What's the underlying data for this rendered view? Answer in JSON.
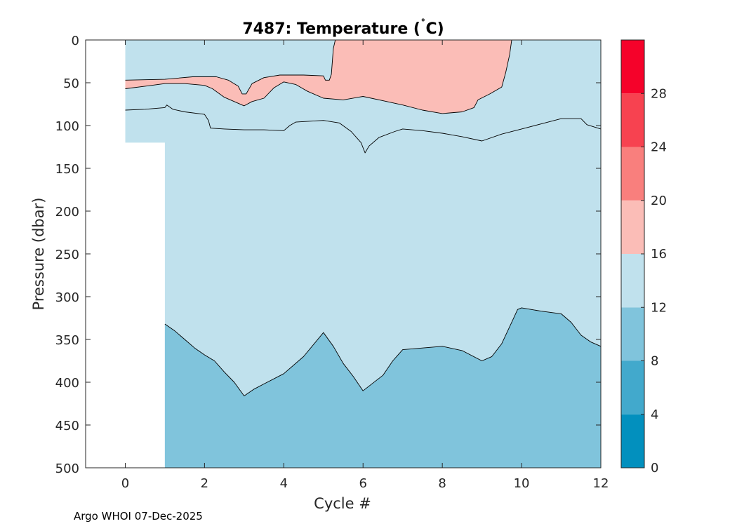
{
  "figure": {
    "title_main": "7487:  Temperature (",
    "title_degree": "˚",
    "title_unit": "C)",
    "footer": "Argo WHOI 07-Dec-2025"
  },
  "chart_data": {
    "type": "filled-contour",
    "title": "7487:  Temperature (˚C)",
    "xlabel": "Cycle #",
    "ylabel": "Pressure (dbar)",
    "xlim": [
      -1,
      12
    ],
    "ylim": [
      0,
      500
    ],
    "y_reversed": true,
    "xticks": [
      0,
      2,
      4,
      6,
      8,
      10,
      12
    ],
    "yticks": [
      0,
      50,
      100,
      150,
      200,
      250,
      300,
      350,
      400,
      450,
      500
    ],
    "colorbar": {
      "range": [
        0,
        32
      ],
      "ticks": [
        0,
        4,
        8,
        12,
        16,
        20,
        24,
        28
      ],
      "bands": [
        {
          "from": 0,
          "to": 4,
          "color": "#0290be"
        },
        {
          "from": 4,
          "to": 8,
          "color": "#42a9cc"
        },
        {
          "from": 8,
          "to": 12,
          "color": "#80c4dc"
        },
        {
          "from": 12,
          "to": 16,
          "color": "#c0e1ed"
        },
        {
          "from": 16,
          "to": 20,
          "color": "#fbbdb7"
        },
        {
          "from": 20,
          "to": 24,
          "color": "#f97f7d"
        },
        {
          "from": 24,
          "to": 28,
          "color": "#f74250"
        },
        {
          "from": 28,
          "to": 32,
          "color": "#f5022a"
        }
      ]
    },
    "data_extent": {
      "cycle0_max_pressure": 120,
      "cycles_1_to_12_max_pressure": 500
    },
    "contours": [
      {
        "level": 16,
        "name": "isotherm-16-upper",
        "points": [
          [
            0,
            47
          ],
          [
            1,
            46
          ],
          [
            1.7,
            43
          ],
          [
            2.3,
            43
          ],
          [
            2.6,
            47
          ],
          [
            2.85,
            54
          ],
          [
            2.95,
            63
          ],
          [
            3.05,
            63
          ],
          [
            3.2,
            51
          ],
          [
            3.5,
            44
          ],
          [
            3.9,
            41
          ],
          [
            4.5,
            41
          ],
          [
            5,
            42
          ],
          [
            5.05,
            47
          ],
          [
            5.15,
            47
          ],
          [
            5.2,
            40
          ],
          [
            5.25,
            10
          ],
          [
            5.3,
            0
          ]
        ]
      },
      {
        "level": 16,
        "name": "isotherm-16-lower",
        "points": [
          [
            0,
            57
          ],
          [
            0.5,
            54
          ],
          [
            1,
            51
          ],
          [
            1.5,
            51
          ],
          [
            2,
            53
          ],
          [
            2.2,
            57
          ],
          [
            2.5,
            67
          ],
          [
            2.8,
            73
          ],
          [
            3,
            77
          ],
          [
            3.2,
            72
          ],
          [
            3.5,
            68
          ],
          [
            3.75,
            56
          ],
          [
            4,
            49
          ],
          [
            4.3,
            52
          ],
          [
            4.6,
            60
          ],
          [
            5,
            68
          ],
          [
            5.5,
            70
          ],
          [
            6,
            66
          ],
          [
            6.5,
            71
          ],
          [
            7,
            76
          ],
          [
            7.5,
            82
          ],
          [
            8,
            86
          ],
          [
            8.5,
            84
          ],
          [
            8.8,
            79
          ],
          [
            8.9,
            70
          ],
          [
            9.2,
            63
          ],
          [
            9.5,
            55
          ],
          [
            9.6,
            38
          ],
          [
            9.7,
            17
          ],
          [
            9.75,
            0
          ]
        ]
      },
      {
        "level": 12,
        "name": "isotherm-12-upper",
        "points": [
          [
            0,
            82
          ],
          [
            0.5,
            81
          ],
          [
            1,
            79
          ],
          [
            1.05,
            76
          ],
          [
            1.2,
            81
          ],
          [
            1.5,
            84
          ],
          [
            2,
            87
          ],
          [
            2.1,
            94
          ],
          [
            2.15,
            103
          ],
          [
            2.5,
            104
          ],
          [
            3,
            105
          ],
          [
            3.5,
            105
          ],
          [
            4,
            106
          ],
          [
            4.15,
            100
          ],
          [
            4.3,
            96
          ],
          [
            5,
            94
          ],
          [
            5.4,
            97
          ],
          [
            5.7,
            107
          ],
          [
            5.95,
            120
          ],
          [
            6.05,
            132
          ],
          [
            6.15,
            124
          ],
          [
            6.4,
            114
          ],
          [
            6.8,
            107
          ],
          [
            7,
            104
          ],
          [
            7.5,
            106
          ],
          [
            8,
            109
          ],
          [
            8.5,
            113
          ],
          [
            9,
            118
          ],
          [
            9.5,
            110
          ],
          [
            10,
            104
          ],
          [
            10.5,
            98
          ],
          [
            11,
            92
          ],
          [
            11.5,
            92
          ],
          [
            11.65,
            99
          ],
          [
            12,
            104
          ]
        ]
      },
      {
        "level": 12,
        "name": "isotherm-12-lower",
        "points": [
          [
            1,
            332
          ],
          [
            1.25,
            340
          ],
          [
            1.5,
            350
          ],
          [
            1.75,
            360
          ],
          [
            2,
            368
          ],
          [
            2.25,
            375
          ],
          [
            2.5,
            388
          ],
          [
            2.75,
            400
          ],
          [
            3,
            416
          ],
          [
            3.25,
            408
          ],
          [
            3.5,
            402
          ],
          [
            4,
            390
          ],
          [
            4.5,
            370
          ],
          [
            5,
            342
          ],
          [
            5.25,
            358
          ],
          [
            5.5,
            378
          ],
          [
            5.75,
            393
          ],
          [
            6,
            410
          ],
          [
            6.25,
            401
          ],
          [
            6.5,
            392
          ],
          [
            6.75,
            375
          ],
          [
            7,
            362
          ],
          [
            7.5,
            360
          ],
          [
            8,
            358
          ],
          [
            8.5,
            363
          ],
          [
            9,
            375
          ],
          [
            9.25,
            370
          ],
          [
            9.5,
            355
          ],
          [
            9.75,
            330
          ],
          [
            9.9,
            315
          ],
          [
            10,
            313
          ],
          [
            10.5,
            317
          ],
          [
            11,
            320
          ],
          [
            11.25,
            330
          ],
          [
            11.5,
            345
          ],
          [
            11.75,
            353
          ],
          [
            12,
            358
          ]
        ]
      }
    ]
  }
}
